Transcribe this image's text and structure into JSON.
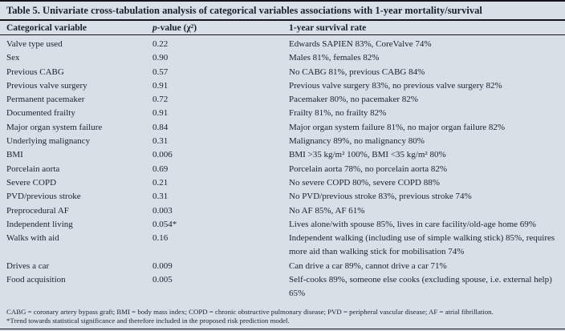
{
  "table": {
    "title": "Table 5. Univariate cross-tabulation analysis of categorical variables associations with 1-year mortality/survival",
    "columns": {
      "variable": "Categorical variable",
      "p_value_italic": "p",
      "p_value_rest": "-value (χ²)",
      "survival": "1-year survival rate"
    },
    "rows": [
      {
        "variable": "Valve type used",
        "p": "0.22",
        "survival": "Edwards SAPIEN 83%, CoreValve 74%"
      },
      {
        "variable": "Sex",
        "p": "0.90",
        "survival": "Males 81%, females 82%"
      },
      {
        "variable": "Previous CABG",
        "p": "0.57",
        "survival": "No CABG 81%, previous CABG 84%"
      },
      {
        "variable": "Previous valve surgery",
        "p": "0.91",
        "survival": "Previous valve surgery 83%, no previous valve surgery 82%"
      },
      {
        "variable": "Permanent pacemaker",
        "p": "0.72",
        "survival": "Pacemaker 80%, no pacemaker 82%"
      },
      {
        "variable": "Documented frailty",
        "p": "0.91",
        "survival": "Frailty 81%, no frailty 82%"
      },
      {
        "variable": "Major organ system failure",
        "p": "0.84",
        "survival": "Major organ system failure 81%, no major organ failure 82%"
      },
      {
        "variable": "Underlying malignancy",
        "p": "0.31",
        "survival": "Malignancy 89%, no malignancy 80%"
      },
      {
        "variable": "BMI",
        "p": "0.006",
        "survival": "BMI >35 kg/m² 100%, BMI <35 kg/m² 80%"
      },
      {
        "variable": "Porcelain aorta",
        "p": "0.69",
        "survival": "Porcelain aorta 78%, no porcelain aorta 82%"
      },
      {
        "variable": "Severe COPD",
        "p": "0.21",
        "survival": "No severe COPD 80%, severe COPD 88%"
      },
      {
        "variable": "PVD/previous stroke",
        "p": "0.31",
        "survival": "No PVD/previous stroke 83%, previous stroke 74%"
      },
      {
        "variable": "Preprocedural AF",
        "p": "0.003",
        "survival": "No AF 85%, AF 61%"
      },
      {
        "variable": "Independent living",
        "p": "0.054*",
        "survival": "Lives alone/with spouse 85%, lives in care facility/old-age home 69%"
      },
      {
        "variable": "Walks with aid",
        "p": "0.16",
        "survival": "Independent walking (including use of simple walking stick) 85%, requires more aid than walking stick for mobilisation 74%"
      },
      {
        "variable": "Drives a car",
        "p": "0.009",
        "survival": "Can drive a car 89%, cannot drive a car 71%"
      },
      {
        "variable": "Food acquisition",
        "p": "0.005",
        "survival": "Self-cooks 89%, someone else cooks (excluding spouse, i.e. external help) 65%"
      }
    ],
    "footnotes": [
      "CABG = coronary artery bypass graft; BMI = body mass index; COPD = chronic obstructive pulmonary disease; PVD = peripheral vascular disease; AF = atrial fibrillation.",
      "*Trend towards statistical significance and therefore included in the proposed risk prediction model."
    ],
    "colors": {
      "background": "#d8dfe7",
      "text": "#1c2130",
      "rule": "#131419"
    }
  }
}
